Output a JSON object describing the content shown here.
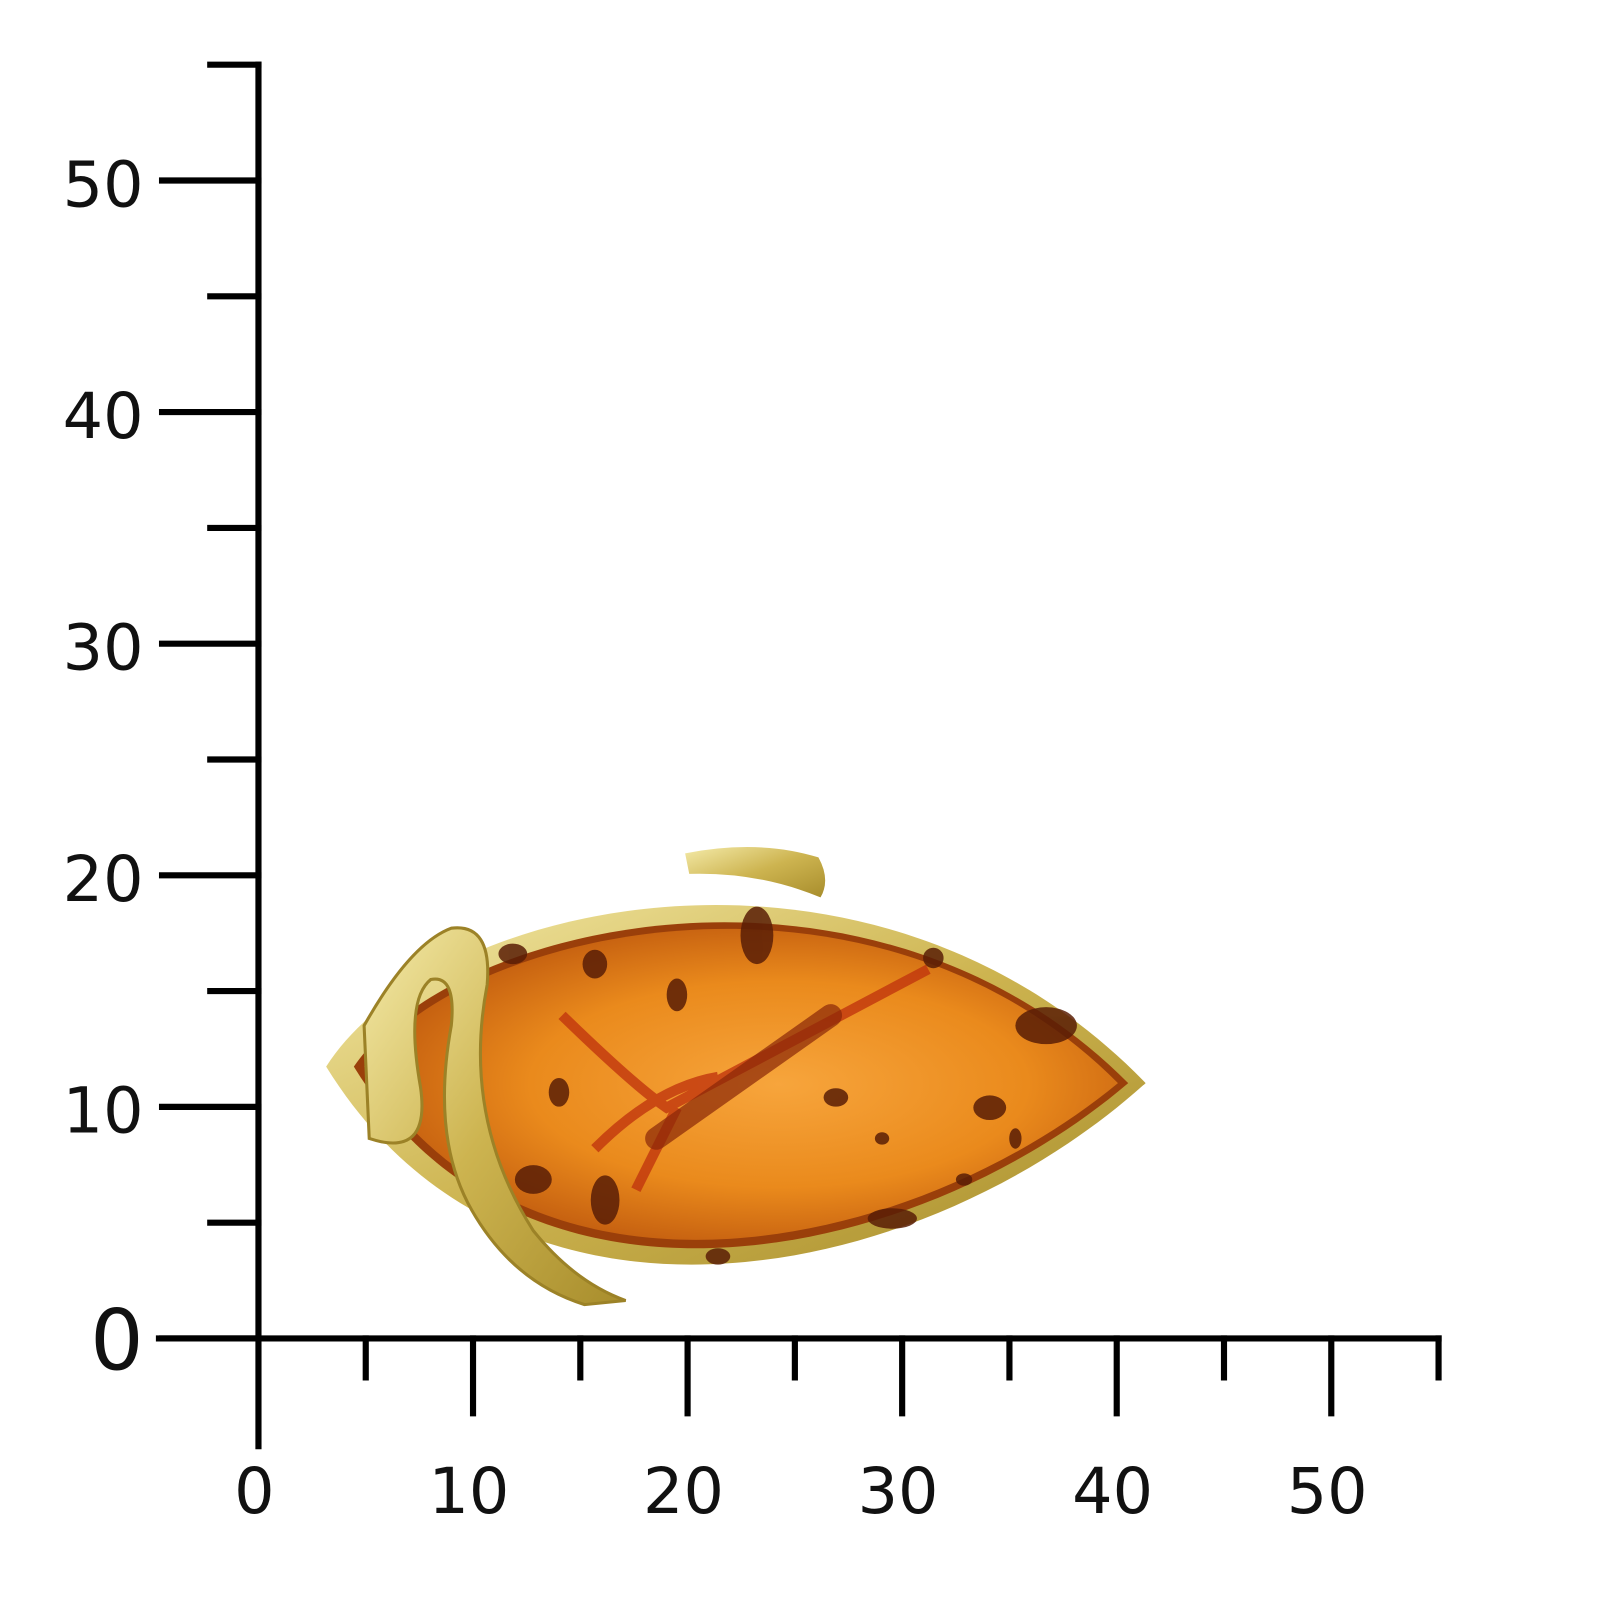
{
  "scale": {
    "xlim": [
      0,
      55
    ],
    "ylim": [
      0,
      55
    ],
    "xticks": [
      0,
      10,
      20,
      30,
      40,
      50
    ],
    "yticks": [
      0,
      10,
      20,
      30,
      40,
      50
    ],
    "x_minor_ticks": [
      5,
      15,
      25,
      35,
      45,
      55
    ],
    "y_minor_ticks": [
      5,
      15,
      25,
      35,
      45,
      55
    ]
  }
}
